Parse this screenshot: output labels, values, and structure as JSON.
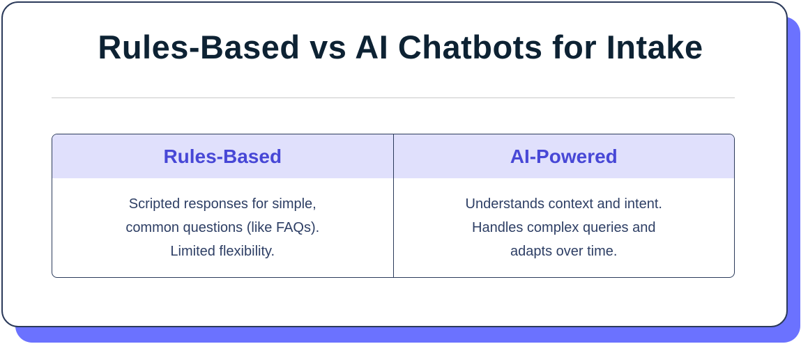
{
  "title": "Rules-Based vs AI Chatbots for Intake",
  "columns": [
    {
      "header": "Rules-Based",
      "lines": [
        "Scripted responses for simple,",
        "common questions (like FAQs).",
        "Limited flexibility."
      ]
    },
    {
      "header": "AI-Powered",
      "lines": [
        "Understands context and intent.",
        "Handles complex queries and",
        "adapts over time."
      ]
    }
  ],
  "colors": {
    "accent": "#4747d6",
    "header_bg": "#e0e0fc",
    "shadow": "#6b72ff",
    "text": "#2d3e64",
    "title": "#0d2233"
  }
}
